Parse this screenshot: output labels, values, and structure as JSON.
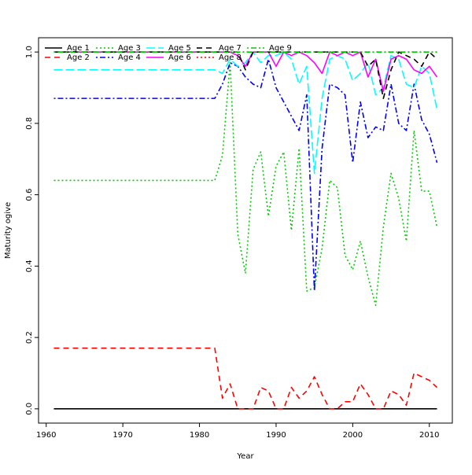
{
  "chart_data": {
    "type": "line",
    "title": "",
    "xlabel": "Year",
    "ylabel": "Maturity ogive",
    "xlim": [
      1959,
      2013
    ],
    "ylim": [
      -0.04,
      1.04
    ],
    "x_ticks": [
      1960,
      1970,
      1980,
      1990,
      2000,
      2010
    ],
    "y_ticks": [
      0.0,
      0.2,
      0.4,
      0.6,
      0.8,
      1.0
    ],
    "x_tick_labels": [
      "1960",
      "1970",
      "1980",
      "1990",
      "2000",
      "2010"
    ],
    "y_tick_labels": [
      "0.0",
      "0.2",
      "0.4",
      "0.6",
      "0.8",
      "1.0"
    ],
    "grid": false,
    "legend_position": "top-left",
    "x": [
      1961,
      1962,
      1963,
      1964,
      1965,
      1966,
      1967,
      1968,
      1969,
      1970,
      1971,
      1972,
      1973,
      1974,
      1975,
      1976,
      1977,
      1978,
      1979,
      1980,
      1981,
      1982,
      1983,
      1984,
      1985,
      1986,
      1987,
      1988,
      1989,
      1990,
      1991,
      1992,
      1993,
      1994,
      1995,
      1996,
      1997,
      1998,
      1999,
      2000,
      2001,
      2002,
      2003,
      2004,
      2005,
      2006,
      2007,
      2008,
      2009,
      2010,
      2011
    ],
    "series": [
      {
        "name": "Age 1",
        "color": "#000000",
        "dash": "solid",
        "values": [
          0,
          0,
          0,
          0,
          0,
          0,
          0,
          0,
          0,
          0,
          0,
          0,
          0,
          0,
          0,
          0,
          0,
          0,
          0,
          0,
          0,
          0,
          0,
          0,
          0,
          0,
          0,
          0,
          0,
          0,
          0,
          0,
          0,
          0,
          0,
          0,
          0,
          0,
          0,
          0,
          0,
          0,
          0,
          0,
          0,
          0,
          0,
          0,
          0,
          0,
          0
        ]
      },
      {
        "name": "Age 2",
        "color": "#ff0000",
        "dash": "dashed",
        "values": [
          0.17,
          0.17,
          0.17,
          0.17,
          0.17,
          0.17,
          0.17,
          0.17,
          0.17,
          0.17,
          0.17,
          0.17,
          0.17,
          0.17,
          0.17,
          0.17,
          0.17,
          0.17,
          0.17,
          0.17,
          0.17,
          0.17,
          0.03,
          0.07,
          0.0,
          0.0,
          0.0,
          0.06,
          0.05,
          0.0,
          0.0,
          0.06,
          0.03,
          0.05,
          0.09,
          0.04,
          0.0,
          0.0,
          0.02,
          0.02,
          0.07,
          0.04,
          0.0,
          0.0,
          0.05,
          0.04,
          0.01,
          0.1,
          0.09,
          0.08,
          0.06
        ]
      },
      {
        "name": "Age 3",
        "color": "#00cd00",
        "dash": "dotted",
        "values": [
          0.64,
          0.64,
          0.64,
          0.64,
          0.64,
          0.64,
          0.64,
          0.64,
          0.64,
          0.64,
          0.64,
          0.64,
          0.64,
          0.64,
          0.64,
          0.64,
          0.64,
          0.64,
          0.64,
          0.64,
          0.64,
          0.64,
          0.71,
          0.97,
          0.49,
          0.38,
          0.67,
          0.72,
          0.54,
          0.68,
          0.72,
          0.5,
          0.73,
          0.33,
          0.34,
          0.45,
          0.64,
          0.62,
          0.43,
          0.39,
          0.47,
          0.37,
          0.29,
          0.51,
          0.66,
          0.59,
          0.47,
          0.78,
          0.61,
          0.61,
          0.51
        ]
      },
      {
        "name": "Age 4",
        "color": "#0000ff",
        "dash": "dotdash",
        "values": [
          0.87,
          0.87,
          0.87,
          0.87,
          0.87,
          0.87,
          0.87,
          0.87,
          0.87,
          0.87,
          0.87,
          0.87,
          0.87,
          0.87,
          0.87,
          0.87,
          0.87,
          0.87,
          0.87,
          0.87,
          0.87,
          0.87,
          0.91,
          0.97,
          0.96,
          0.93,
          0.91,
          0.9,
          0.98,
          0.9,
          0.86,
          0.82,
          0.78,
          0.88,
          0.33,
          0.73,
          0.91,
          0.9,
          0.88,
          0.69,
          0.86,
          0.76,
          0.79,
          0.78,
          0.91,
          0.8,
          0.78,
          0.91,
          0.81,
          0.77,
          0.69
        ]
      },
      {
        "name": "Age 5",
        "color": "#00ffff",
        "dash": "longdash",
        "values": [
          0.95,
          0.95,
          0.95,
          0.95,
          0.95,
          0.95,
          0.95,
          0.95,
          0.95,
          0.95,
          0.95,
          0.95,
          0.95,
          0.95,
          0.95,
          0.95,
          0.95,
          0.95,
          0.95,
          0.95,
          0.95,
          0.95,
          0.94,
          0.98,
          0.96,
          0.97,
          1.0,
          0.97,
          0.99,
          0.99,
          1.0,
          0.98,
          0.91,
          0.96,
          0.66,
          0.87,
          0.98,
          0.99,
          0.98,
          0.92,
          0.94,
          0.97,
          0.88,
          0.9,
          0.99,
          0.98,
          0.91,
          0.9,
          0.96,
          0.94,
          0.84
        ]
      },
      {
        "name": "Age 6",
        "color": "#ff00ff",
        "dash": "solid",
        "values": [
          1,
          1,
          1,
          1,
          1,
          1,
          1,
          1,
          1,
          1,
          1,
          1,
          1,
          1,
          1,
          1,
          1,
          1,
          1,
          1,
          1,
          1,
          1,
          1,
          0.99,
          0.96,
          1.0,
          1.0,
          1.0,
          0.96,
          1.0,
          0.99,
          1.0,
          0.99,
          0.97,
          0.94,
          1.0,
          0.99,
          1.0,
          0.99,
          1.0,
          0.93,
          0.98,
          0.89,
          0.98,
          0.99,
          0.98,
          0.95,
          0.94,
          0.96,
          0.93
        ]
      },
      {
        "name": "Age 7",
        "color": "#000000",
        "dash": "dashed",
        "values": [
          1,
          1,
          1,
          1,
          1,
          1,
          1,
          1,
          1,
          1,
          1,
          1,
          1,
          1,
          1,
          1,
          1,
          1,
          1,
          1,
          1,
          1,
          1,
          1,
          1,
          0.95,
          1,
          1,
          1,
          1,
          1,
          1,
          1,
          1,
          1,
          1,
          1,
          1,
          1,
          1,
          1,
          0.96,
          0.98,
          0.87,
          0.95,
          1.0,
          0.99,
          0.98,
          0.96,
          1.0,
          0.98
        ]
      },
      {
        "name": "Age 8",
        "color": "#ff0000",
        "dash": "dotted",
        "values": [
          1,
          1,
          1,
          1,
          1,
          1,
          1,
          1,
          1,
          1,
          1,
          1,
          1,
          1,
          1,
          1,
          1,
          1,
          1,
          1,
          1,
          1,
          1,
          1,
          1,
          1,
          1,
          1,
          1,
          1,
          1,
          1,
          1,
          1,
          1,
          1,
          1,
          1,
          1,
          1,
          1,
          1,
          1,
          1,
          1,
          1,
          1,
          1,
          1,
          1,
          1
        ]
      },
      {
        "name": "Age 9",
        "color": "#00cd00",
        "dash": "dotdash",
        "values": [
          1,
          1,
          1,
          1,
          1,
          1,
          1,
          1,
          1,
          1,
          1,
          1,
          1,
          1,
          1,
          1,
          1,
          1,
          1,
          1,
          1,
          1,
          1,
          1,
          1,
          1,
          1,
          1,
          1,
          1,
          1,
          1,
          1,
          1,
          1,
          1,
          1,
          1,
          1,
          1,
          1,
          1,
          1,
          1,
          1,
          1,
          1,
          1,
          1,
          1,
          1
        ]
      }
    ]
  }
}
